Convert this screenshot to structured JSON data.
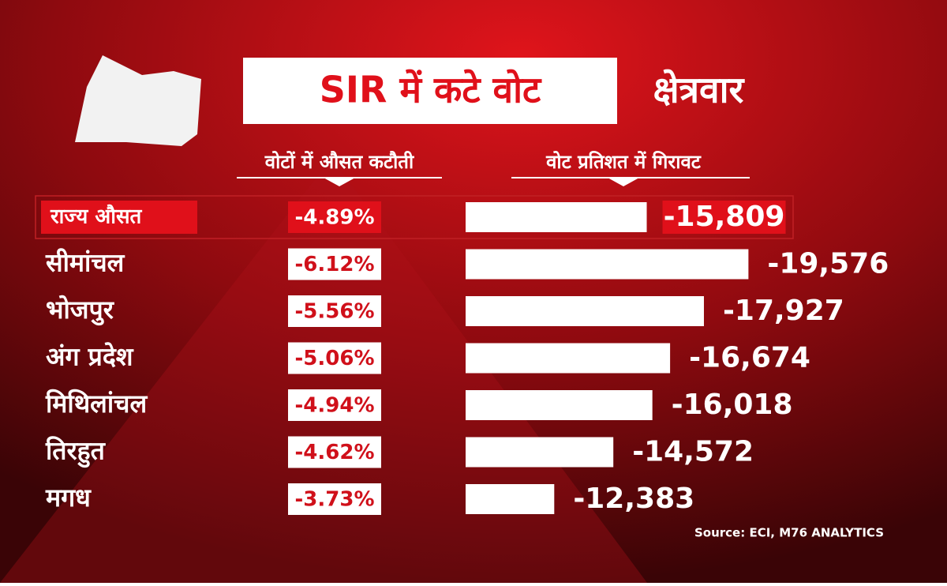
{
  "chart_data": {
    "type": "bar",
    "title": "SIR में कटे वोट",
    "subtitle": "क्षेत्रवार",
    "categories": [
      "राज्य औसत",
      "सीमांचल",
      "भोजपुर",
      "अंग प्रदेश",
      "मिथिलांचल",
      "तिरहुत",
      "मगध"
    ],
    "series": [
      {
        "name": "वोटों में औसत कटौती",
        "values": [
          -4.89,
          -6.12,
          -5.56,
          -5.06,
          -4.94,
          -4.62,
          -3.73
        ],
        "value_labels": [
          "-4.89%",
          "-6.12%",
          "-5.56%",
          "-5.06%",
          "-4.94%",
          "-4.62%",
          "-3.73%"
        ]
      },
      {
        "name": "वोट प्रतिशत में गिरावट",
        "color": "#ffffff",
        "values": [
          -15809,
          -19576,
          -17927,
          -16674,
          -16018,
          -14572,
          -12383
        ],
        "value_labels": [
          "-15,809",
          "-19,576",
          "-17,927",
          "-16,674",
          "-16,018",
          "-14,572",
          "-12,383"
        ]
      }
    ],
    "xlim": [
      -9100,
      -20500
    ],
    "source": "Source: ECI, M76 ANALYTICS"
  }
}
